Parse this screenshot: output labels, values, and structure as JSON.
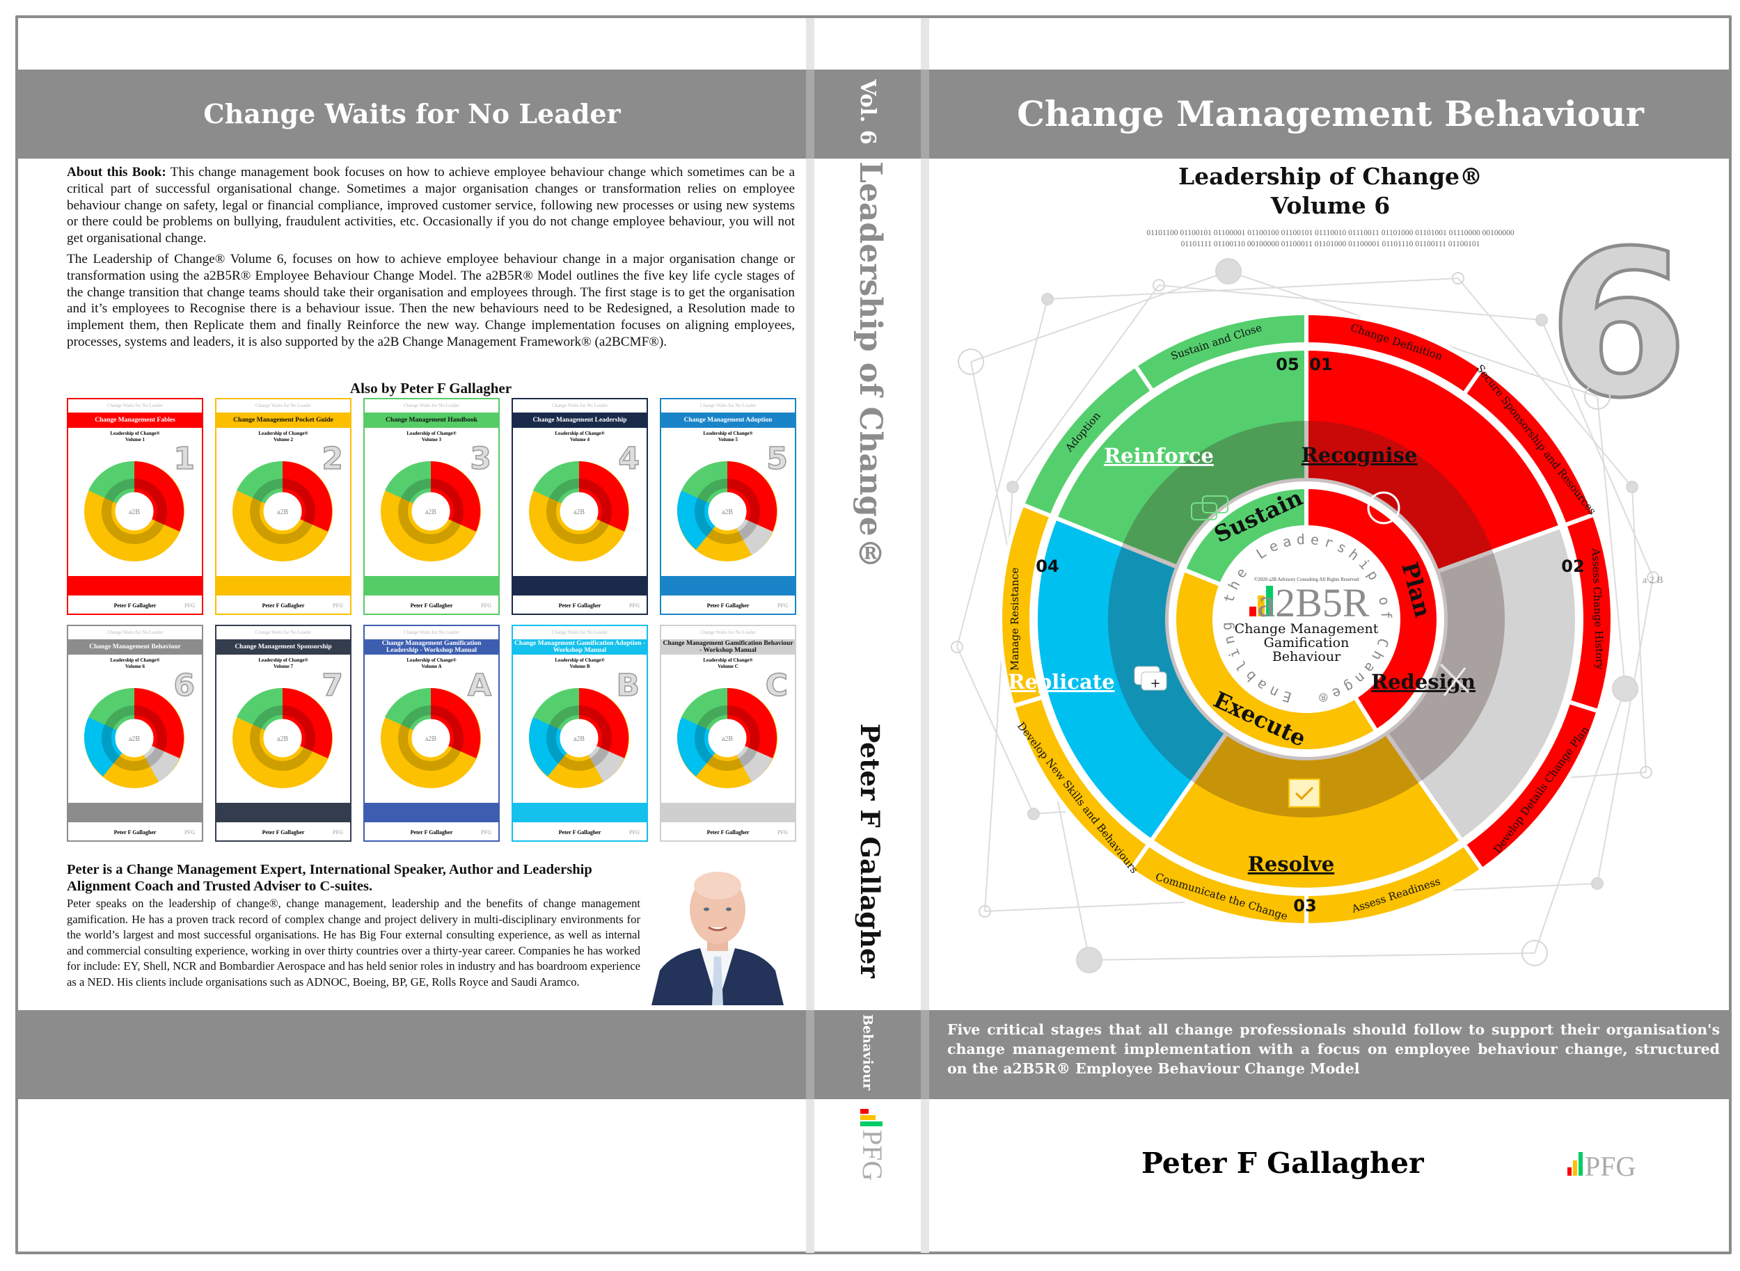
{
  "back_cover": {
    "title": "Change Waits for No Leader",
    "about_label": "About this Book:",
    "about_p1": " This change management book focuses on how to achieve employee behaviour change which sometimes can be a critical part of successful organisational change. Sometimes a major organisation changes or transformation relies on employee behaviour change on safety, legal or financial compliance, improved customer service, following new processes or using new systems or there could be problems on bullying, fraudulent activities, etc. Occasionally if you do not change employee behaviour, you will not get organisational change.",
    "about_p2": "The Leadership of Change® Volume 6, focuses on how to achieve employee behaviour change in a major organisation change or transformation using the a2B5R® Employee Behaviour Change Model. The a2B5R® Model outlines the five key life cycle stages of the change transition that change teams should take their organisation and employees through. The first stage is to get the organisation and it’s employees to Recognise there is a behaviour issue. Then the new behaviours need to be Redesigned, a Resolution made to implement them, then Replicate them and finally Reinforce the new way. Change implementation focuses on aligning employees, processes, systems and leaders, it is also supported by the a2B Change Management Framework® (a2BCMF®).",
    "also_by": "Also by Peter F Gallagher",
    "books": [
      {
        "series_top": "Change Waits for No Leader",
        "title": "Change Management Fables",
        "series": "Leadership of Change®",
        "volume": "Volume 1",
        "badge": "1",
        "color": "#ff0000",
        "author": "Peter F Gallagher",
        "logo": "PFG"
      },
      {
        "series_top": "Change Waits for No Leader",
        "title": "Change Management Pocket Guide",
        "series": "Leadership of Change®",
        "volume": "Volume 2",
        "badge": "2",
        "color": "#fbbf00",
        "author": "Peter F Gallagher",
        "logo": "PFG"
      },
      {
        "series_top": "Change Waits for No Leader",
        "title": "Change Management Handbook",
        "series": "Leadership of Change®",
        "volume": "Volume 3",
        "badge": "3",
        "color": "#55cc66",
        "author": "Peter F Gallagher",
        "logo": "PFG"
      },
      {
        "series_top": "Change Waits for No Leader",
        "title": "Change Management Leadership",
        "series": "Leadership of Change®",
        "volume": "Volume 4",
        "badge": "4",
        "color": "#1a2a4a",
        "author": "Peter F Gallagher",
        "logo": "PFG"
      },
      {
        "series_top": "Change Waits for No Leader",
        "title": "Change Management Adoption",
        "series": "Leadership of Change®",
        "volume": "Volume 5",
        "badge": "5",
        "color": "#1a84c8",
        "author": "Peter F Gallagher",
        "logo": "PFG"
      },
      {
        "series_top": "Change Waits for No Leader",
        "title": "Change Management Behaviour",
        "series": "Leadership of Change®",
        "volume": "Volume 6",
        "badge": "6",
        "color": "#8c8c8c",
        "author": "Peter F Gallagher",
        "logo": "PFG"
      },
      {
        "series_top": "Change Waits for No Leader",
        "title": "Change Management Sponsorship",
        "series": "Leadership of Change®",
        "volume": "Volume 7",
        "badge": "7",
        "color": "#333d4d",
        "author": "Peter F Gallagher",
        "logo": "PFG"
      },
      {
        "series_top": "Change Waits for No Leader",
        "title": "Change Management Gamification Leadership - Workshop Manual",
        "series": "Leadership of Change®",
        "volume": "Volume A",
        "badge": "A",
        "color": "#3d5eb0",
        "author": "Peter F Gallagher",
        "logo": "PFG"
      },
      {
        "series_top": "Change Waits for No Leader",
        "title": "Change Management Gamification Adoption - Workshop Manual",
        "series": "Leadership of Change®",
        "volume": "Volume B",
        "badge": "B",
        "color": "#14c0ec",
        "author": "Peter F Gallagher",
        "logo": "PFG"
      },
      {
        "series_top": "Change Waits for No Leader",
        "title": "Change Management Gamification Behaviour - Workshop Manual",
        "series": "Leadership of Change®",
        "volume": "Volume C",
        "badge": "C",
        "color": "#cfcfcf",
        "author": "Peter F Gallagher",
        "logo": "PFG"
      }
    ],
    "bio_heading": "Peter is a Change Management Expert, International Speaker, Author and Leadership Alignment Coach and Trusted Adviser to C-suites.",
    "bio_text": "Peter speaks on the leadership of change®, change management, leadership and the benefits of change management gamification. He has a proven track record of complex change and project delivery in multi-disciplinary environments for the world’s largest and most successful organisations. He has Big Four external consulting experience, as well as internal and commercial consulting experience, working in over thirty countries over a thirty-year career. Companies he has worked for include: EY, Shell, NCR and Bombardier Aerospace and has held senior roles in industry and has boardroom experience as a NED. His clients include organisations such as ADNOC, Boeing, BP, GE, Rolls Royce and Saudi Aramco."
  },
  "spine": {
    "volume": "Vol. 6",
    "series": "Leadership of Change®",
    "author": "Peter F Gallagher",
    "subject": "Behaviour",
    "logo": "PFG"
  },
  "front_cover": {
    "title": "Change Management Behaviour",
    "series": "Leadership of Change®",
    "volume": "Volume 6",
    "binary_line1": "01101100 01100101 01100001 01100100 01100101 01110010 01110011 01101000 01101001 01110000 00100000",
    "binary_line2": "01101111 01100110 00100000 01100011 01101000 01100001 01101110 01100111 01100101",
    "big_number": "6",
    "wheel": {
      "center_copyright": "©2020 a2B Advisory Consulting All Rights Reserved",
      "center_logo": "a2B5R",
      "center_line1": "Change Management",
      "center_line2": "Gamification",
      "center_line3": "Behaviour",
      "ring_text": "Enabling the Leadership of Change®",
      "phases": [
        {
          "label": "Plan",
          "color": "#ff0000"
        },
        {
          "label": "Execute",
          "color": "#fcc100"
        },
        {
          "label": "Sustain",
          "color": "#55cf6e"
        }
      ],
      "stages": [
        {
          "num": "01",
          "label": "Recognise",
          "color": "#ff0000",
          "tasks": [
            "Change Definition",
            "Secure Sponsorship and Resources"
          ]
        },
        {
          "num": "02",
          "label": "Redesign",
          "color": "#d3d3d3",
          "tasks": [
            "Assess Change History",
            "Develop Details Change Plan"
          ]
        },
        {
          "num": "03",
          "label": "Resolve",
          "color": "#fcc100",
          "tasks": [
            "Communicate the Change",
            "Assess Readiness"
          ]
        },
        {
          "num": "04",
          "label": "Replicate",
          "color": "#00c0f0",
          "tasks": [
            "Manage Resistance",
            "Develop New Skills and Behaviours"
          ]
        },
        {
          "num": "05",
          "label": "Reinforce",
          "color": "#55cf6e",
          "tasks": [
            "Adoption",
            "Sustain and Close"
          ]
        }
      ],
      "side_logo": "a 2 B"
    },
    "blurb": "Five critical stages that all change professionals should follow to support their organisation's change management implementation with a focus on employee behaviour change, structured on the a2B5R® Employee Behaviour Change Model",
    "author": "Peter F Gallagher",
    "logo": "PFG"
  },
  "colors": {
    "band_gray": "#8c8c8c",
    "stripe_gray": "#e6e6e6",
    "red": "#ff0000",
    "yellow": "#fcc100",
    "green": "#55cf6e",
    "cyan": "#00c0f0",
    "light_gray": "#d3d3d3"
  }
}
